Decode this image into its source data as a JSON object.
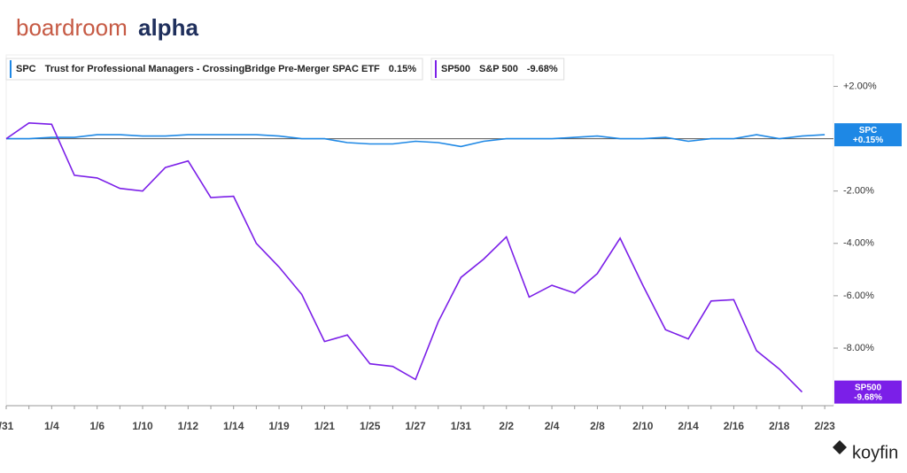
{
  "brand": {
    "part1": "boardroom",
    "part2": "alpha",
    "footer": "koyfin"
  },
  "chart_data": {
    "type": "line",
    "categories": [
      "/31",
      null,
      "1/4",
      null,
      "1/6",
      null,
      "1/10",
      null,
      "1/12",
      null,
      "1/14",
      null,
      "1/19",
      null,
      "1/21",
      null,
      "1/25",
      null,
      "1/27",
      null,
      "1/31",
      null,
      "2/2",
      null,
      "2/4",
      null,
      "2/8",
      null,
      "2/10",
      null,
      "2/14",
      null,
      "2/16",
      null,
      "2/18",
      null,
      "2/23"
    ],
    "series": [
      {
        "ticker": "SPC",
        "name": "Trust for Professional Managers - CrossingBridge Pre-Merger SPAC ETF",
        "value_label": "0.15%",
        "tag_label": "+0.15%",
        "color": "#1e88e5",
        "values": [
          0,
          0,
          0.05,
          0.05,
          0.15,
          0.15,
          0.1,
          0.1,
          0.15,
          0.15,
          0.15,
          0.15,
          0.1,
          0,
          0,
          -0.15,
          -0.2,
          -0.2,
          -0.1,
          -0.15,
          -0.3,
          -0.1,
          0,
          0,
          0,
          0.05,
          0.1,
          0,
          0,
          0.05,
          -0.1,
          0,
          0,
          0.15,
          0,
          0.1,
          0.15
        ]
      },
      {
        "ticker": "SP500",
        "name": "S&P 500",
        "value_label": "-9.68%",
        "tag_label": "-9.68%",
        "color": "#7b1fe8",
        "values": [
          0,
          0.6,
          0.55,
          -1.4,
          -1.5,
          -1.9,
          -2.0,
          -1.1,
          -0.85,
          -2.25,
          -2.2,
          -4.0,
          -4.9,
          -5.95,
          -7.75,
          -7.5,
          -8.6,
          -8.7,
          -9.2,
          -7.0,
          -5.3,
          -4.6,
          -3.75,
          -6.05,
          -5.6,
          -5.9,
          -5.15,
          -3.8,
          -5.6,
          -7.3,
          -7.65,
          -6.2,
          -6.15,
          -8.1,
          -8.8,
          -9.68,
          null
        ]
      }
    ],
    "ylim": [
      -10.2,
      3.2
    ],
    "yticks": [
      {
        "value": 2,
        "label": "+2.00%"
      },
      {
        "value": -2,
        "label": "-2.00%"
      },
      {
        "value": -4,
        "label": "-4.00%"
      },
      {
        "value": -6,
        "label": "-6.00%"
      },
      {
        "value": -8,
        "label": "-8.00%"
      }
    ]
  }
}
